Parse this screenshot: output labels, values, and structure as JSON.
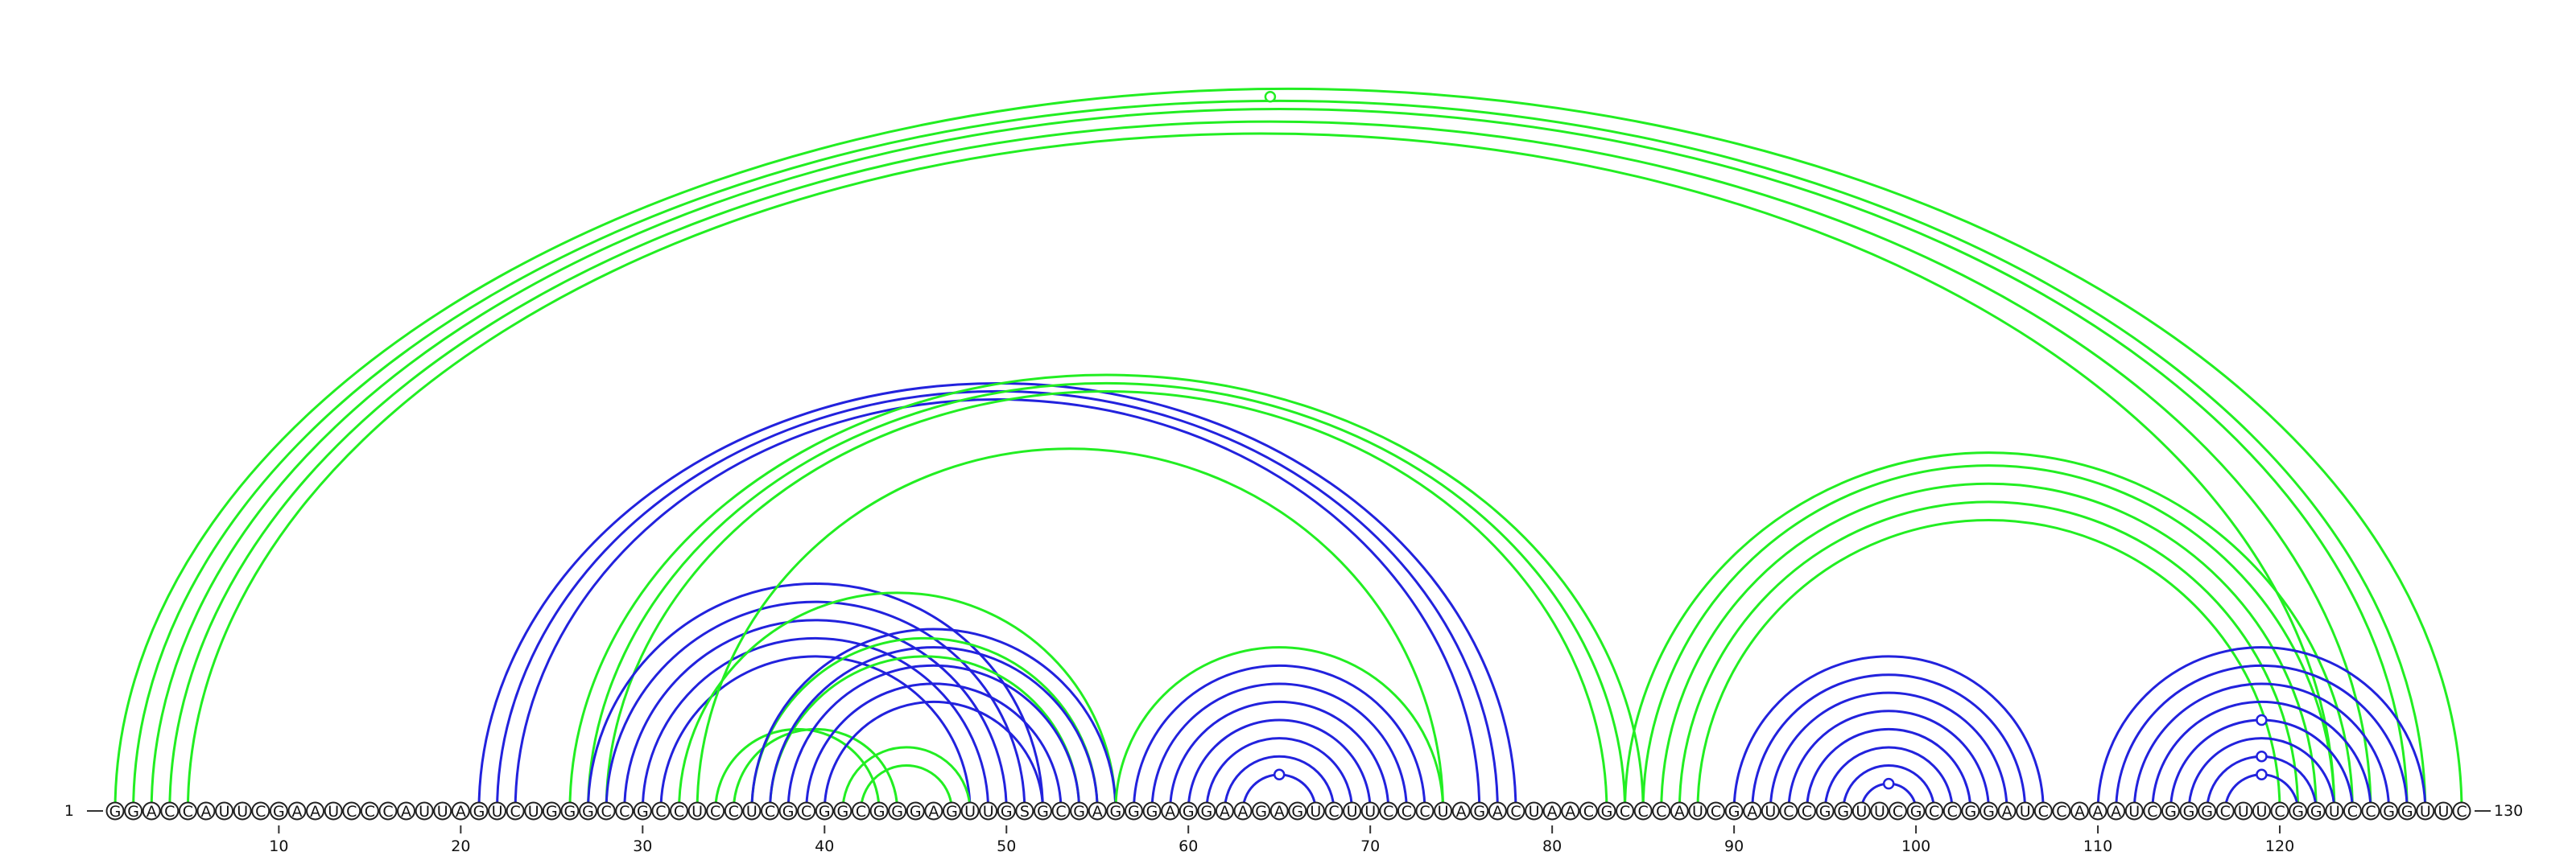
{
  "sequence": "GGACCAUUCGAAUCCCAUUAGUCUGGGCCGCCUCCUCGCGGCGGGAGUUGSGCGAGGGAGGAAGAGUCUUCCCUAGACUAACGCCCAUCGAUCCGGUUCGCCGGAUCCAAAUCGGGCUUCGGUCCGGUUC",
  "start_label": "1",
  "end_label": "130",
  "ticks": [
    "10",
    "20",
    "30",
    "40",
    "50",
    "60",
    "70",
    "80",
    "90",
    "100",
    "110",
    "120"
  ],
  "colors": {
    "green": "#22ee22",
    "blue": "#2222dd",
    "outline": "#222222"
  },
  "arcs": [
    {
      "i": 1,
      "j": 130,
      "color": "green"
    },
    {
      "i": 2,
      "j": 128,
      "color": "green"
    },
    {
      "i": 3,
      "j": 127,
      "color": "green"
    },
    {
      "i": 4,
      "j": 125,
      "color": "green"
    },
    {
      "i": 5,
      "j": 123,
      "color": "green"
    },
    {
      "i": 21,
      "j": 78,
      "color": "blue"
    },
    {
      "i": 22,
      "j": 77,
      "color": "blue"
    },
    {
      "i": 23,
      "j": 76,
      "color": "blue"
    },
    {
      "i": 26,
      "j": 85,
      "color": "green"
    },
    {
      "i": 27,
      "j": 84,
      "color": "green"
    },
    {
      "i": 28,
      "j": 83,
      "color": "green"
    },
    {
      "i": 27,
      "j": 52,
      "color": "blue"
    },
    {
      "i": 28,
      "j": 51,
      "color": "blue"
    },
    {
      "i": 29,
      "j": 50,
      "color": "blue"
    },
    {
      "i": 30,
      "j": 49,
      "color": "blue"
    },
    {
      "i": 31,
      "j": 48,
      "color": "blue"
    },
    {
      "i": 32,
      "j": 56,
      "color": "green"
    },
    {
      "i": 33,
      "j": 74,
      "color": "green"
    },
    {
      "i": 34,
      "j": 43,
      "color": "green"
    },
    {
      "i": 35,
      "j": 44,
      "color": "green"
    },
    {
      "i": 36,
      "j": 55,
      "color": "green"
    },
    {
      "i": 37,
      "j": 54,
      "color": "green"
    },
    {
      "i": 36,
      "j": 56,
      "color": "blue"
    },
    {
      "i": 37,
      "j": 55,
      "color": "blue"
    },
    {
      "i": 38,
      "j": 54,
      "color": "blue"
    },
    {
      "i": 39,
      "j": 53,
      "color": "blue"
    },
    {
      "i": 40,
      "j": 52,
      "color": "blue"
    },
    {
      "i": 41,
      "j": 48,
      "color": "green"
    },
    {
      "i": 42,
      "j": 47,
      "color": "green"
    },
    {
      "i": 56,
      "j": 74,
      "color": "green"
    },
    {
      "i": 57,
      "j": 73,
      "color": "blue"
    },
    {
      "i": 58,
      "j": 72,
      "color": "blue"
    },
    {
      "i": 59,
      "j": 71,
      "color": "blue"
    },
    {
      "i": 60,
      "j": 70,
      "color": "blue"
    },
    {
      "i": 61,
      "j": 69,
      "color": "blue"
    },
    {
      "i": 62,
      "j": 68,
      "color": "blue"
    },
    {
      "i": 63,
      "j": 67,
      "color": "blue"
    },
    {
      "i": 84,
      "j": 124,
      "color": "green"
    },
    {
      "i": 85,
      "j": 123,
      "color": "green"
    },
    {
      "i": 86,
      "j": 122,
      "color": "green"
    },
    {
      "i": 87,
      "j": 121,
      "color": "green"
    },
    {
      "i": 88,
      "j": 120,
      "color": "green"
    },
    {
      "i": 90,
      "j": 107,
      "color": "blue"
    },
    {
      "i": 91,
      "j": 106,
      "color": "blue"
    },
    {
      "i": 92,
      "j": 105,
      "color": "blue"
    },
    {
      "i": 93,
      "j": 104,
      "color": "blue"
    },
    {
      "i": 94,
      "j": 103,
      "color": "blue"
    },
    {
      "i": 95,
      "j": 102,
      "color": "blue"
    },
    {
      "i": 96,
      "j": 101,
      "color": "blue"
    },
    {
      "i": 97,
      "j": 100,
      "color": "blue"
    },
    {
      "i": 110,
      "j": 128,
      "color": "blue"
    },
    {
      "i": 111,
      "j": 127,
      "color": "blue"
    },
    {
      "i": 112,
      "j": 126,
      "color": "blue"
    },
    {
      "i": 113,
      "j": 125,
      "color": "blue"
    },
    {
      "i": 114,
      "j": 124,
      "color": "blue"
    },
    {
      "i": 115,
      "j": 123,
      "color": "blue"
    },
    {
      "i": 116,
      "j": 122,
      "color": "blue"
    },
    {
      "i": 117,
      "j": 121,
      "color": "blue"
    }
  ],
  "markers": [
    {
      "i": 1,
      "j": 128,
      "color": "green"
    },
    {
      "i": 63,
      "j": 67,
      "color": "blue"
    },
    {
      "i": 97,
      "j": 100,
      "color": "blue"
    },
    {
      "i": 117,
      "j": 121,
      "color": "blue"
    },
    {
      "i": 116,
      "j": 122,
      "color": "blue"
    },
    {
      "i": 114,
      "j": 124,
      "color": "blue"
    }
  ]
}
